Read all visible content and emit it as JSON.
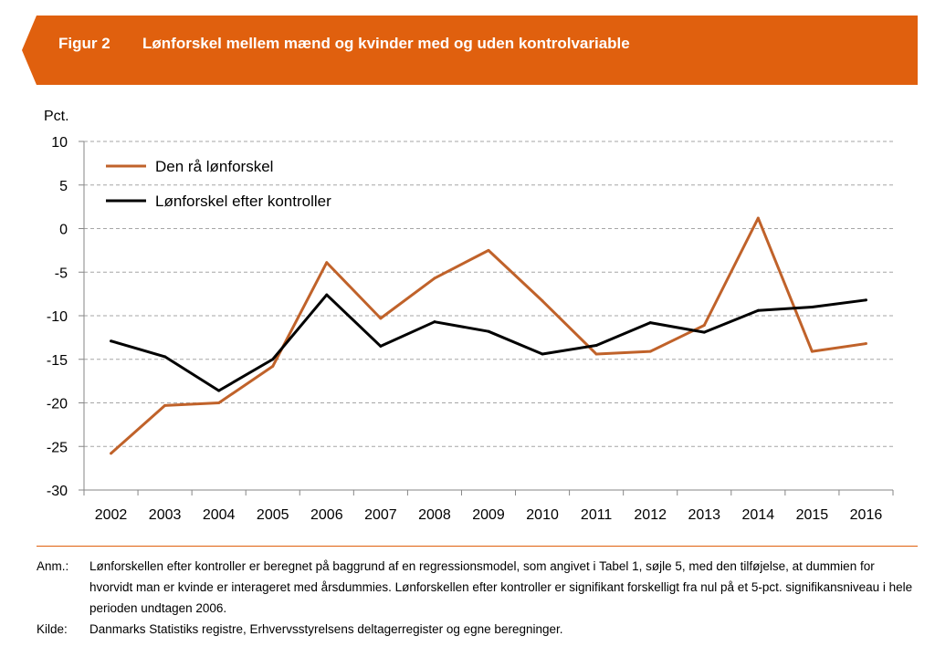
{
  "figure": {
    "label": "Figur 2",
    "title": "Lønforskel mellem mænd og kvinder med og uden kontrolvariable"
  },
  "chart_data": {
    "type": "line",
    "ylabel": "Pct.",
    "xlabel": "",
    "ylim": [
      -30,
      10
    ],
    "yticks": [
      "10",
      "5",
      "0",
      "-5",
      "-10",
      "-15",
      "-20",
      "-25",
      "-30"
    ],
    "grid": "horizontal dashed",
    "legend_position": "top-left",
    "categories": [
      "2002",
      "2003",
      "2004",
      "2005",
      "2006",
      "2007",
      "2008",
      "2009",
      "2010",
      "2011",
      "2012",
      "2013",
      "2014",
      "2015",
      "2016"
    ],
    "series": [
      {
        "name": "Den rå lønforskel",
        "color": "#c0622a",
        "values": [
          -25.8,
          -20.3,
          -20.0,
          -15.8,
          -3.9,
          -10.3,
          -5.7,
          -2.5,
          -8.3,
          -14.4,
          -14.1,
          -11.1,
          1.2,
          -14.1,
          -13.2
        ]
      },
      {
        "name": "Lønforskel efter kontroller",
        "color": "#000000",
        "values": [
          -12.9,
          -14.7,
          -18.6,
          -15.0,
          -7.6,
          -13.5,
          -10.7,
          -11.8,
          -14.4,
          -13.4,
          -10.8,
          -11.9,
          -9.4,
          -9.0,
          -8.2
        ]
      }
    ]
  },
  "notes": {
    "anm_label": "Anm.:",
    "anm_text": "Lønforskellen efter kontroller er beregnet på baggrund af en regressionsmodel, som angivet i Tabel 1, søjle 5, med den tilføjelse, at dummien for hvorvidt man er kvinde er interageret med årsdummies. Lønforskellen efter kontroller er signifikant forskelligt fra nul på et 5-pct. signifikansniveau i hele perioden undtagen 2006.",
    "kilde_label": "Kilde:",
    "kilde_text": "Danmarks Statistiks registre, Erhvervsstyrelsens deltagerregister og egne beregninger."
  }
}
